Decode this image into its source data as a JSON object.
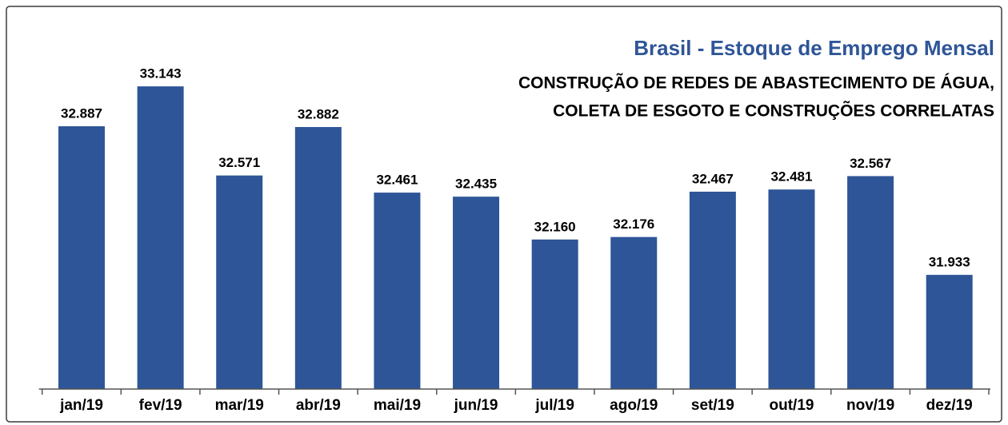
{
  "chart_data": {
    "type": "bar",
    "title": "Brasil - Estoque de Emprego Mensal",
    "subtitle": [
      "CONSTRUÇÃO DE REDES DE ABASTECIMENTO DE ÁGUA,",
      "COLETA DE ESGOTO E CONSTRUÇÕES CORRELATAS"
    ],
    "categories": [
      "jan/19",
      "fev/19",
      "mar/19",
      "abr/19",
      "mai/19",
      "jun/19",
      "jul/19",
      "ago/19",
      "set/19",
      "out/19",
      "nov/19",
      "dez/19"
    ],
    "values": [
      32887,
      33143,
      32571,
      32882,
      32461,
      32435,
      32160,
      32176,
      32467,
      32481,
      32567,
      31933
    ],
    "value_labels": [
      "32.887",
      "33.143",
      "32.571",
      "32.882",
      "32.461",
      "32.435",
      "32.160",
      "32.176",
      "32.467",
      "32.481",
      "32.567",
      "31.933"
    ],
    "color": "#2e5597",
    "ylim": [
      31200,
      33600
    ]
  }
}
